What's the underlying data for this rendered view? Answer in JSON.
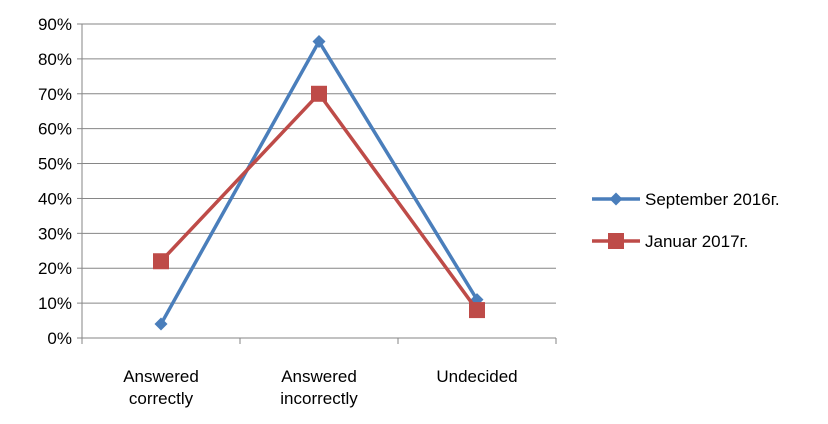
{
  "chart_data": {
    "type": "line",
    "categories": [
      [
        "Answered",
        "correctly"
      ],
      [
        "Answered",
        "incorrectly"
      ],
      [
        "Undecided"
      ]
    ],
    "series": [
      {
        "name": "September 2016г.",
        "values": [
          4,
          85,
          11
        ],
        "color": "#4a7ebb",
        "marker": "diamond"
      },
      {
        "name": "Januar 2017г.",
        "values": [
          22,
          70,
          8
        ],
        "color": "#be4b48",
        "marker": "square"
      }
    ],
    "ylim": [
      0,
      90
    ],
    "yticks": [
      "0%",
      "10%",
      "20%",
      "30%",
      "40%",
      "50%",
      "60%",
      "70%",
      "80%",
      "90%"
    ],
    "grid": true,
    "legend": "right"
  }
}
